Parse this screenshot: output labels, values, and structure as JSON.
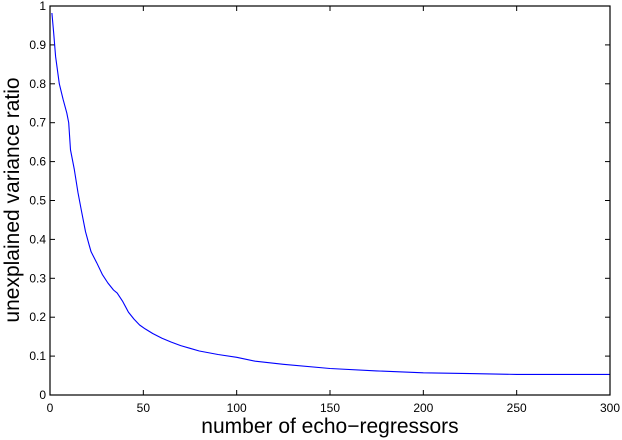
{
  "chart_data": {
    "type": "line",
    "title": "",
    "xlabel": "number of echo−regressors",
    "ylabel": "unexplained variance ratio",
    "xlim": [
      0,
      300
    ],
    "ylim": [
      0,
      1
    ],
    "xticks": [
      0,
      50,
      100,
      150,
      200,
      250,
      300
    ],
    "xtick_labels": [
      "0",
      "50",
      "100",
      "150",
      "200",
      "250",
      "300"
    ],
    "yticks": [
      0,
      0.1,
      0.2,
      0.3,
      0.4,
      0.5,
      0.6,
      0.7,
      0.8,
      0.9,
      1
    ],
    "ytick_labels": [
      "0",
      "0.1",
      "0.2",
      "0.3",
      "0.4",
      "0.5",
      "0.6",
      "0.7",
      "0.8",
      "0.9",
      "1"
    ],
    "grid": false,
    "legend": null,
    "series": [
      {
        "name": "unexplained variance ratio",
        "color": "#0000ff",
        "x": [
          1,
          2,
          3,
          5,
          7,
          9,
          10,
          11,
          13,
          15,
          17,
          19,
          21,
          22,
          25,
          28,
          31,
          34,
          36,
          39,
          42,
          45,
          48,
          51,
          55,
          60,
          65,
          70,
          75,
          80,
          90,
          100,
          110,
          125,
          150,
          175,
          200,
          225,
          250,
          275,
          300
        ],
        "values": [
          0.982,
          0.93,
          0.87,
          0.8,
          0.76,
          0.725,
          0.7,
          0.63,
          0.58,
          0.52,
          0.47,
          0.42,
          0.385,
          0.368,
          0.34,
          0.31,
          0.288,
          0.27,
          0.262,
          0.24,
          0.213,
          0.195,
          0.18,
          0.17,
          0.158,
          0.146,
          0.136,
          0.127,
          0.12,
          0.113,
          0.104,
          0.097,
          0.087,
          0.079,
          0.068,
          0.062,
          0.057,
          0.055,
          0.053,
          0.053,
          0.053
        ]
      }
    ]
  }
}
